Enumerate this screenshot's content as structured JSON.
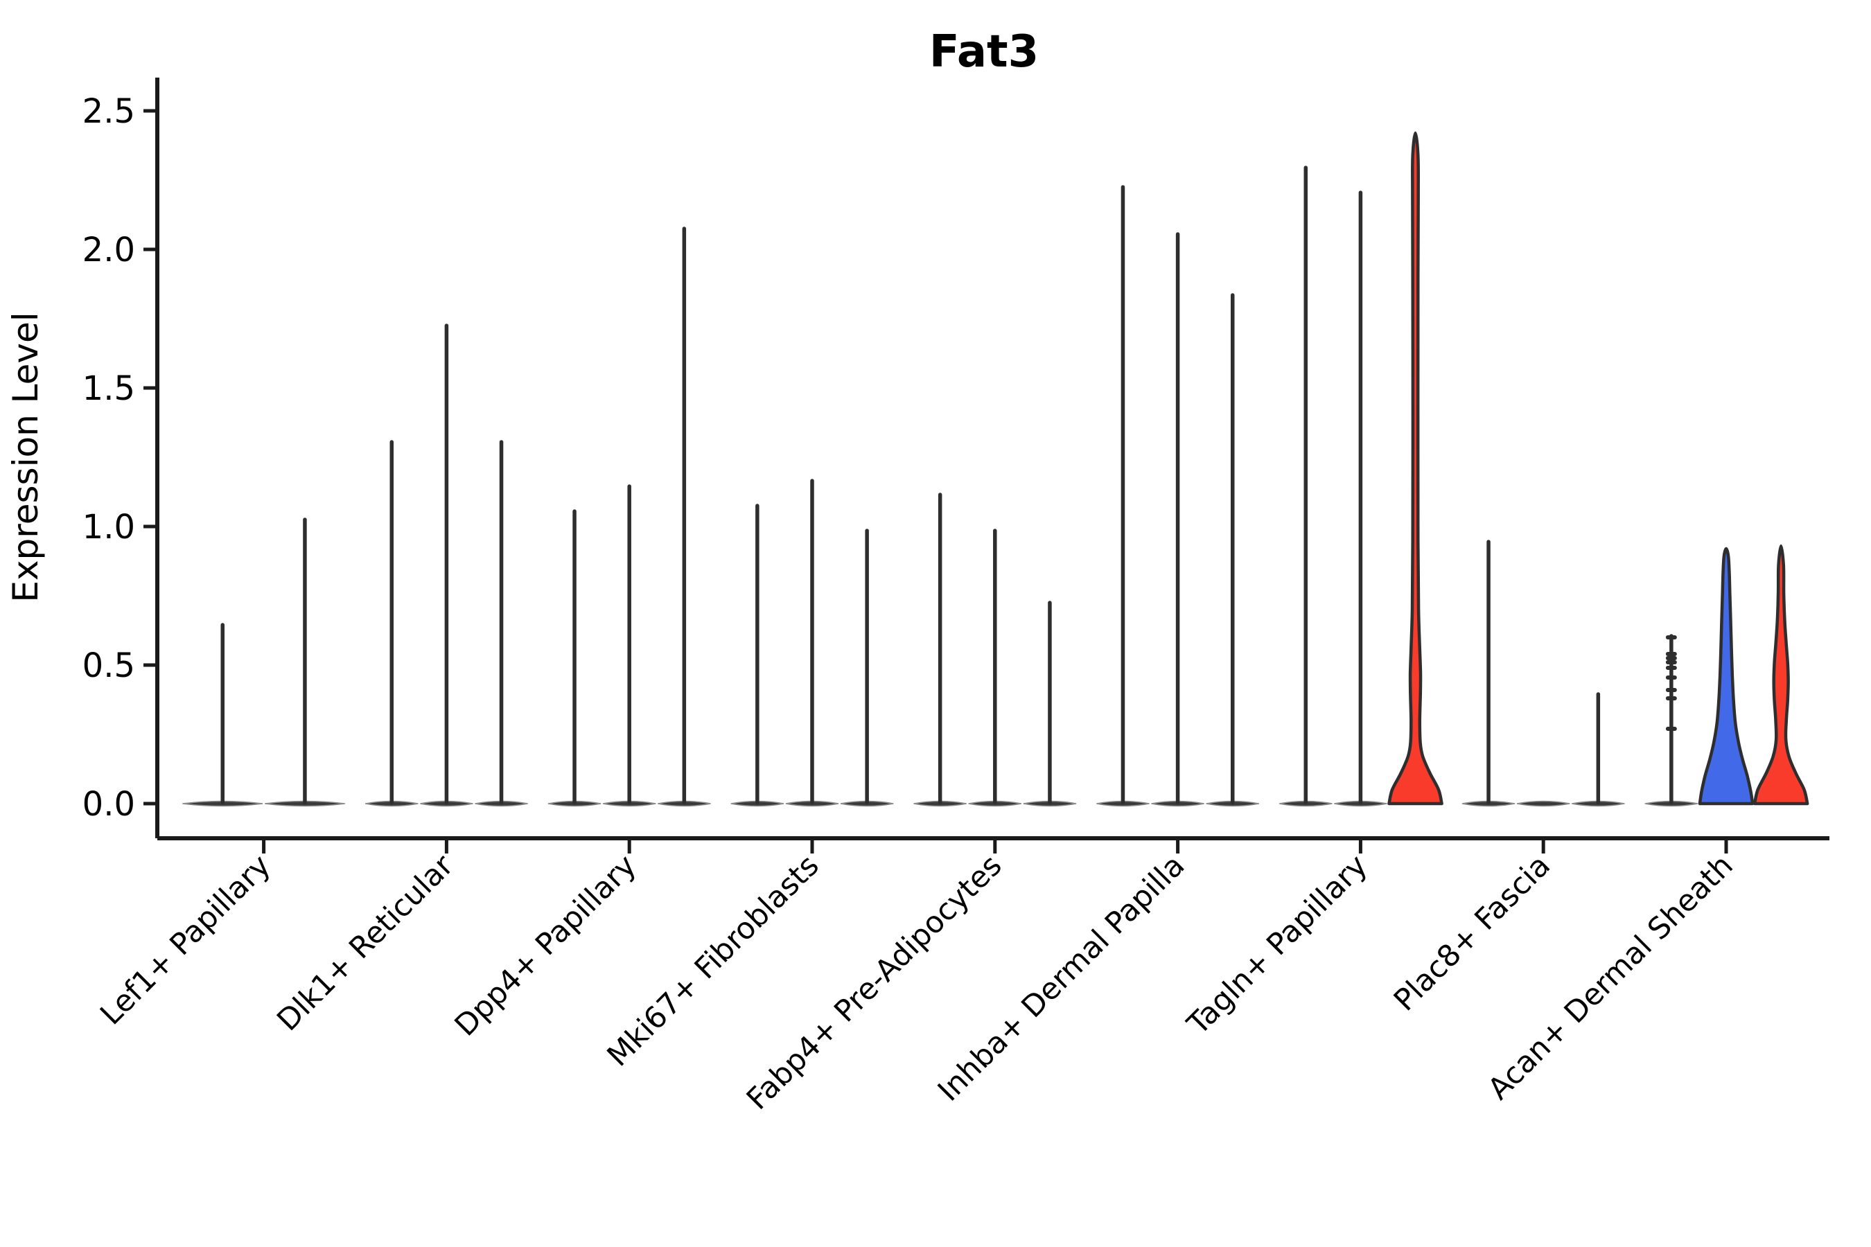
{
  "chart_data": {
    "type": "violin",
    "title": "Fat3",
    "ylabel": "Expression Level",
    "xlabel": "",
    "ylim": [
      0,
      2.5
    ],
    "yticks": [
      0.0,
      0.5,
      1.0,
      1.5,
      2.0,
      2.5
    ],
    "ytick_labels": [
      "0.0",
      "0.5",
      "1.0",
      "1.5",
      "2.0",
      "2.5"
    ],
    "grid": false,
    "legend": null,
    "colors": {
      "outline": "#2e2e2e",
      "base_disc": "#3a3a3a",
      "base_disc_edge": "#8a8a8a",
      "axis": "#1a1a1a",
      "text": "#000000",
      "red": "#f93b2c",
      "blue": "#4169e8",
      "background": "#ffffff"
    },
    "categories": [
      "Lef1+ Papillary",
      "Dlk1+ Reticular",
      "Dpp4+ Papillary",
      "Mki67+ Fibroblasts",
      "Fabp4+ Pre-Adipocytes",
      "Inhba+ Dermal Papilla",
      "Tagln+ Papillary",
      "Plac8+ Fascia",
      "Acan+ Dermal Sheath"
    ],
    "groups": [
      {
        "label": "Lef1+ Papillary",
        "violins": [
          {
            "kind": "needle",
            "max": 0.65
          },
          {
            "kind": "needle",
            "max": 1.03
          }
        ]
      },
      {
        "label": "Dlk1+ Reticular",
        "violins": [
          {
            "kind": "needle",
            "max": 1.31
          },
          {
            "kind": "needle",
            "max": 1.73
          },
          {
            "kind": "needle",
            "max": 1.31
          }
        ]
      },
      {
        "label": "Dpp4+ Papillary",
        "violins": [
          {
            "kind": "needle",
            "max": 1.06
          },
          {
            "kind": "needle",
            "max": 1.15
          },
          {
            "kind": "needle",
            "max": 2.08
          }
        ]
      },
      {
        "label": "Mki67+ Fibroblasts",
        "violins": [
          {
            "kind": "needle",
            "max": 1.08
          },
          {
            "kind": "needle",
            "max": 1.17
          },
          {
            "kind": "needle",
            "max": 0.99
          }
        ]
      },
      {
        "label": "Fabp4+ Pre-Adipocytes",
        "violins": [
          {
            "kind": "needle",
            "max": 1.12
          },
          {
            "kind": "needle",
            "max": 0.99
          },
          {
            "kind": "needle",
            "max": 0.73
          }
        ]
      },
      {
        "label": "Inhba+ Dermal Papilla",
        "violins": [
          {
            "kind": "needle",
            "max": 2.23
          },
          {
            "kind": "needle",
            "max": 2.06
          },
          {
            "kind": "needle",
            "max": 1.84
          }
        ]
      },
      {
        "label": "Tagln+ Papillary",
        "violins": [
          {
            "kind": "needle",
            "max": 2.3
          },
          {
            "kind": "needle",
            "max": 2.21
          },
          {
            "kind": "shaped",
            "max": 2.42,
            "fill": "red",
            "profile": [
              [
                0,
                1
              ],
              [
                0.05,
                0.88
              ],
              [
                0.11,
                0.55
              ],
              [
                0.17,
                0.28
              ],
              [
                0.22,
                0.185
              ],
              [
                0.3,
                0.165
              ],
              [
                0.4,
                0.19
              ],
              [
                0.47,
                0.195
              ],
              [
                0.56,
                0.165
              ],
              [
                0.7,
                0.12
              ],
              [
                0.95,
                0.1
              ],
              [
                1.4,
                0.095
              ],
              [
                1.9,
                0.1
              ],
              [
                2.2,
                0.11
              ],
              [
                2.34,
                0.1
              ],
              [
                2.42,
                0
              ]
            ]
          }
        ]
      },
      {
        "label": "Plac8+ Fascia",
        "violins": [
          {
            "kind": "needle",
            "max": 0.95
          },
          {
            "kind": "flat",
            "max": 0.0
          },
          {
            "kind": "needle",
            "max": 0.4
          }
        ]
      },
      {
        "label": "Acan+ Dermal Sheath",
        "violins": [
          {
            "kind": "needle",
            "max": 0.61,
            "dots": [
              0.27,
              0.38,
              0.41,
              0.455,
              0.49,
              0.51,
              0.525,
              0.54,
              0.6
            ]
          },
          {
            "kind": "shaped",
            "max": 0.92,
            "fill": "blue",
            "profile": [
              [
                0,
                1
              ],
              [
                0.045,
                0.93
              ],
              [
                0.1,
                0.8
              ],
              [
                0.16,
                0.62
              ],
              [
                0.22,
                0.47
              ],
              [
                0.29,
                0.35
              ],
              [
                0.37,
                0.28
              ],
              [
                0.46,
                0.235
              ],
              [
                0.56,
                0.2
              ],
              [
                0.66,
                0.17
              ],
              [
                0.76,
                0.14
              ],
              [
                0.84,
                0.115
              ],
              [
                0.895,
                0.08
              ],
              [
                0.92,
                0
              ]
            ]
          },
          {
            "kind": "shaped",
            "max": 0.93,
            "fill": "red",
            "profile": [
              [
                0,
                1
              ],
              [
                0.05,
                0.88
              ],
              [
                0.11,
                0.56
              ],
              [
                0.17,
                0.3
              ],
              [
                0.23,
                0.185
              ],
              [
                0.3,
                0.2
              ],
              [
                0.37,
                0.25
              ],
              [
                0.44,
                0.275
              ],
              [
                0.51,
                0.25
              ],
              [
                0.58,
                0.195
              ],
              [
                0.66,
                0.14
              ],
              [
                0.76,
                0.105
              ],
              [
                0.86,
                0.095
              ],
              [
                0.93,
                0
              ]
            ]
          }
        ]
      }
    ]
  }
}
